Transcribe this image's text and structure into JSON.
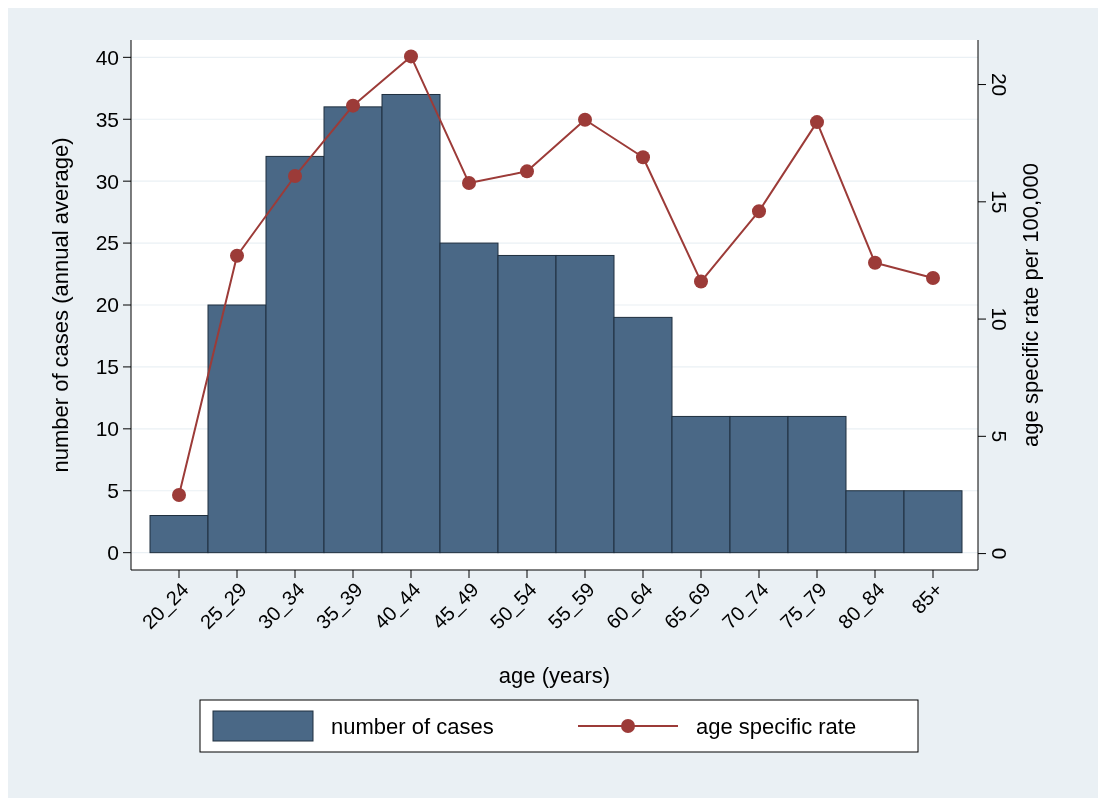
{
  "chart_data": {
    "type": "bar",
    "xlabel": "age (years)",
    "ylabel": "number of cases (annual average)",
    "y2label": "age specific rate per 100,000",
    "categories": [
      "20_24",
      "25_29",
      "30_34",
      "35_39",
      "40_44",
      "45_49",
      "50_54",
      "55_59",
      "60_64",
      "65_69",
      "70_74",
      "75_79",
      "80_84",
      "85+"
    ],
    "series": [
      {
        "name": "number of cases",
        "color": "#4a6886",
        "values": [
          3,
          20,
          32,
          36,
          37,
          25,
          24,
          24,
          19,
          11,
          11,
          11,
          5,
          5
        ]
      },
      {
        "name": "age specific rate",
        "type": "line",
        "axis": "y2",
        "color": "#9c3b38",
        "values": [
          2.5,
          12.7,
          16.1,
          19.1,
          21.2,
          15.8,
          16.3,
          18.5,
          16.9,
          11.6,
          14.6,
          18.4,
          12.4,
          11.75
        ]
      }
    ],
    "ylim": [
      -1.4,
      41.4
    ],
    "yticks": [
      0,
      5,
      10,
      15,
      20,
      25,
      30,
      35,
      40
    ],
    "y2lim": [
      -0.7,
      21.9
    ],
    "y2ticks": [
      0,
      5,
      10,
      15,
      20
    ],
    "grid": "y",
    "legend": "bottom",
    "marker": "circle",
    "line_style": "solid"
  }
}
